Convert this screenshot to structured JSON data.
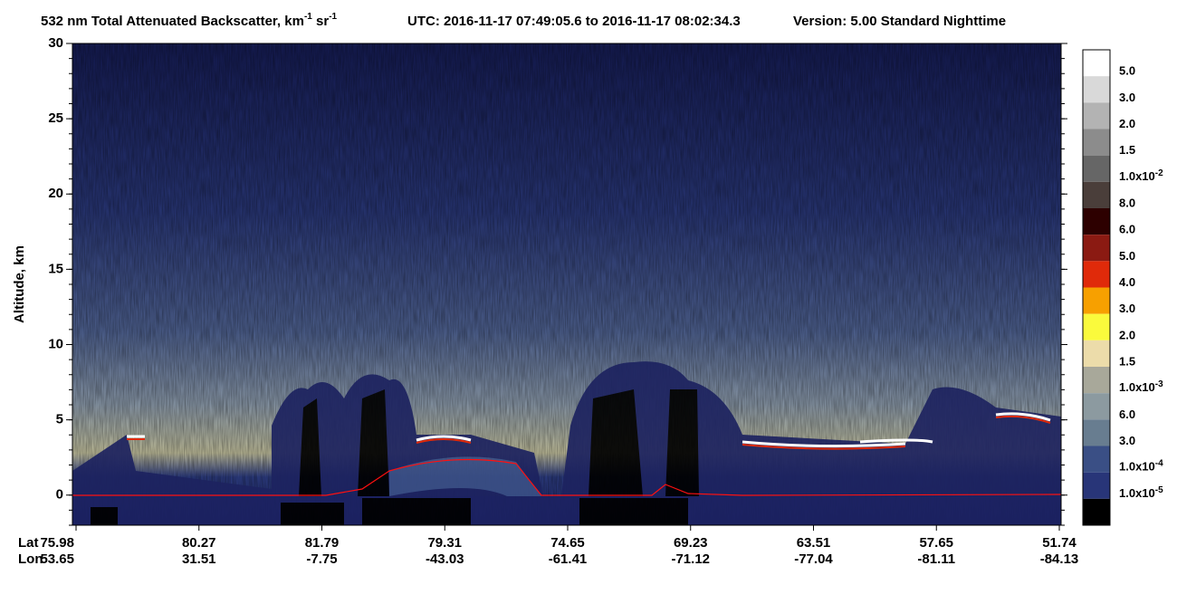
{
  "chart_data": {
    "type": "curtain",
    "title_parts": [
      "532 nm Total Attenuated Backscatter, km",
      "-1",
      " sr",
      "-1"
    ],
    "utc": "UTC:  2016-11-17 07:49:05.6  to  2016-11-17 08:02:34.3",
    "version": "Version: 5.00  Standard  Nighttime",
    "ylabel": "Altitude, km",
    "ylim": [
      -2,
      30
    ],
    "yticks": [
      0,
      5,
      10,
      15,
      20,
      25,
      30
    ],
    "x_row_labels": [
      "Lat",
      "Lon"
    ],
    "lat": [
      "75.98",
      "80.27",
      "81.79",
      "79.31",
      "74.65",
      "69.23",
      "63.51",
      "57.65",
      "51.74"
    ],
    "lon": [
      "53.65",
      "31.51",
      "-7.75",
      "-43.03",
      "-61.41",
      "-71.12",
      "-77.04",
      "-81.11",
      "-84.13"
    ],
    "colorbar": {
      "colors": [
        "#ffffff",
        "#d9d9d9",
        "#b3b3b3",
        "#8c8c8c",
        "#666666",
        "#4a3e3a",
        "#2d0000",
        "#8b1a12",
        "#e02a0a",
        "#f7a000",
        "#fafa3c",
        "#ecdcaa",
        "#a8a89a",
        "#8c9aa0",
        "#687d90",
        "#3a4f85",
        "#283578",
        "#000000"
      ],
      "labels": [
        "5.0",
        "3.0",
        "2.0",
        "1.5",
        {
          "text": "1.0x10",
          "sup": "-2"
        },
        "8.0",
        "6.0",
        "5.0",
        "4.0",
        "3.0",
        "2.0",
        "1.5",
        {
          "text": "1.0x10",
          "sup": "-3"
        },
        "6.0",
        "3.0",
        {
          "text": "1.0x10",
          "sup": "-4"
        },
        {
          "text": "1.0x10",
          "sup": "-5"
        }
      ]
    }
  }
}
